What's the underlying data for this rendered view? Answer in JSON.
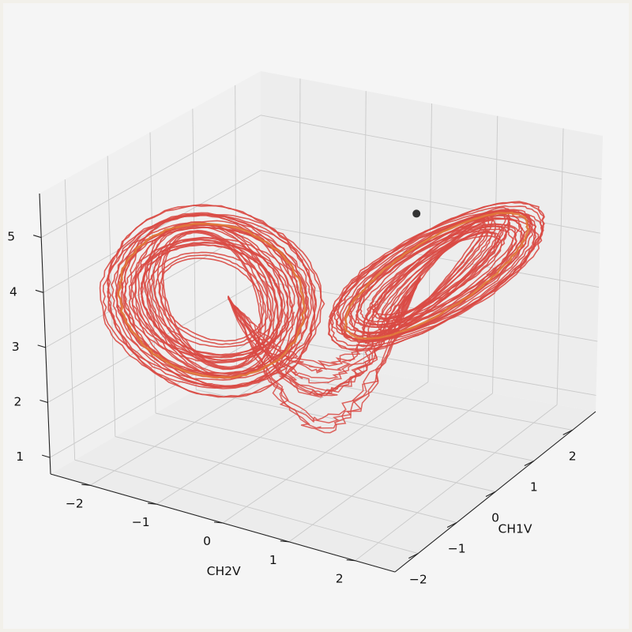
{
  "chart_data": {
    "type": "line",
    "projection": "3d",
    "title": "",
    "xlabel": "CH1V",
    "ylabel": "CH2V",
    "zlabel": "",
    "xlim": [
      -2.6,
      2.6
    ],
    "ylim": [
      -2.6,
      2.6
    ],
    "zlim": [
      0.7,
      5.8
    ],
    "x_ticks": [
      "−2",
      "−1",
      "0",
      "1",
      "2"
    ],
    "y_ticks": [
      "−2",
      "−1",
      "0",
      "1",
      "2"
    ],
    "z_ticks": [
      "1",
      "2",
      "3",
      "4",
      "5"
    ],
    "x_tick_values": [
      -2,
      -1,
      0,
      1,
      2
    ],
    "y_tick_values": [
      -2,
      -1,
      0,
      1,
      2
    ],
    "z_tick_values": [
      1,
      2,
      3,
      4,
      5
    ],
    "grid": true,
    "series": [
      {
        "style": "double-scroll attractor trajectory",
        "color": "#d94a44",
        "lobes": [
          {
            "center": [
              -1.05,
              -1.05,
              3.6
            ],
            "radius_range": [
              0.3,
              1.55
            ]
          },
          {
            "center": [
              1.05,
              1.05,
              3.6
            ],
            "radius_range": [
              0.3,
              1.55
            ]
          }
        ]
      },
      {
        "style": "highlighted final orbit",
        "color": "#e07a3a"
      }
    ],
    "marker": {
      "x": 0.55,
      "y": 1.05,
      "z": 4.9,
      "color": "#333333"
    }
  }
}
